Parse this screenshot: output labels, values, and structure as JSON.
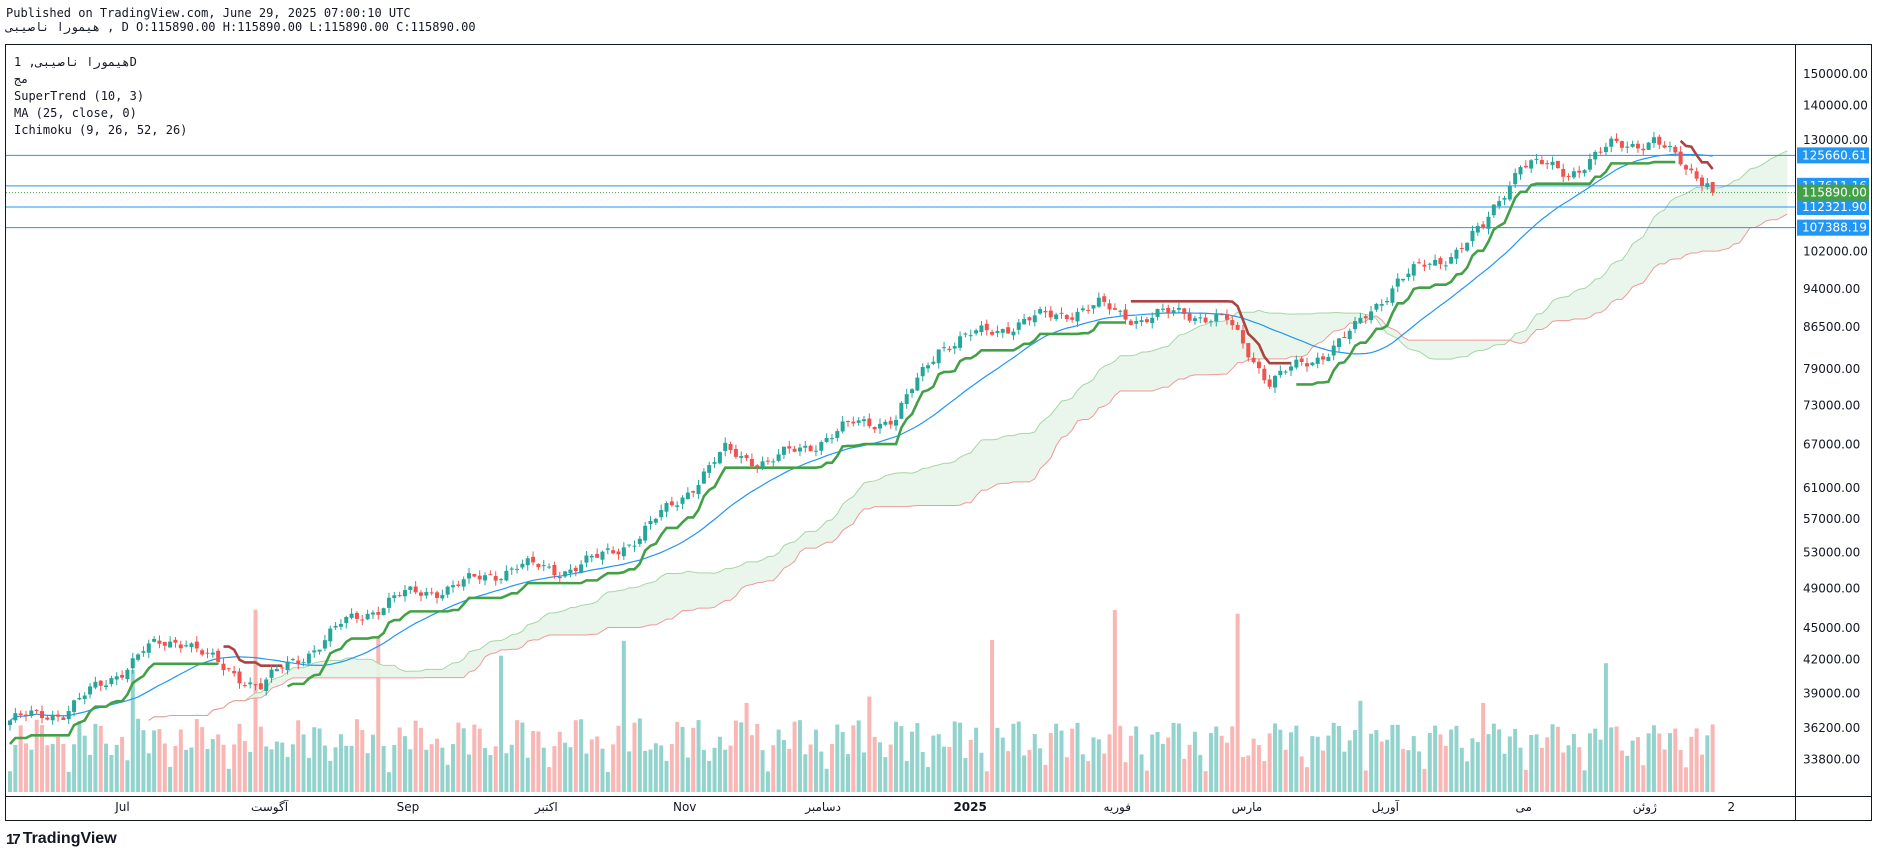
{
  "header": {
    "published": "Published on TradingView.com, June 29, 2025 07:00:10 UTC",
    "ohlc": "هیمورا ناصیبی , D O:115890.00 H:115890.00 L:115890.00 C:115890.00"
  },
  "legend": {
    "symbol": "هیمورا ناصیبی, 1D",
    "exchange": "مج",
    "supertrend": "SuperTrend (10, 3)",
    "ma": "MA (25, close, 0)",
    "ichimoku": "Ichimoku (9, 26, 52, 26)"
  },
  "footer": {
    "logo_mark": "17",
    "logo_text": "TradingView"
  },
  "colors": {
    "up": "#26a69a",
    "down": "#ef5350",
    "ma": "#2196f3",
    "st_up": "#43a047",
    "st_down": "#a94442",
    "cloud_up": "#e8f5e9",
    "span_a": "#a5d6a7",
    "span_b": "#ef9a9a",
    "hline": "#2196f3",
    "last": "#43a047"
  },
  "chart_data": {
    "type": "candlestick",
    "title": "هیمورا ناصیبی, 1D",
    "x_labels": [
      "Jul",
      "آگوست",
      "Sep",
      "اکتبر",
      "Nov",
      "دسامبر",
      "2025",
      "فوریه",
      "مارس",
      "آوریل",
      "می",
      "ژوئن",
      "2"
    ],
    "y_ticks": [
      33800,
      36200,
      39000,
      42000,
      45000,
      49000,
      53000,
      57000,
      61000,
      67000,
      73000,
      79000,
      86500,
      94000,
      102000,
      130000,
      140000,
      150000
    ],
    "y_scale": "log",
    "ylim": [
      31500,
      158000
    ],
    "horizontal_levels": [
      125660.61,
      117611.16,
      112321.9,
      107388.19
    ],
    "last_price": 115890.0,
    "trend_anchors": [
      [
        0,
        36800
      ],
      [
        10,
        37500
      ],
      [
        18,
        40000
      ],
      [
        25,
        42800
      ],
      [
        33,
        44000
      ],
      [
        40,
        41000
      ],
      [
        47,
        39800
      ],
      [
        54,
        42000
      ],
      [
        62,
        45200
      ],
      [
        72,
        48000
      ],
      [
        85,
        49500
      ],
      [
        95,
        51500
      ],
      [
        103,
        51000
      ],
      [
        110,
        52200
      ],
      [
        118,
        55000
      ],
      [
        126,
        60000
      ],
      [
        134,
        66000
      ],
      [
        142,
        64500
      ],
      [
        150,
        67000
      ],
      [
        158,
        70000
      ],
      [
        166,
        71000
      ],
      [
        174,
        83000
      ],
      [
        186,
        86500
      ],
      [
        196,
        89000
      ],
      [
        204,
        90500
      ],
      [
        212,
        88000
      ],
      [
        220,
        89500
      ],
      [
        228,
        87500
      ],
      [
        236,
        77000
      ],
      [
        244,
        80500
      ],
      [
        252,
        86000
      ],
      [
        260,
        96000
      ],
      [
        268,
        100000
      ],
      [
        276,
        107000
      ],
      [
        283,
        124000
      ],
      [
        292,
        121000
      ],
      [
        300,
        128000
      ],
      [
        308,
        130000
      ],
      [
        314,
        122000
      ],
      [
        320,
        118000
      ]
    ],
    "volume_range": [
      0,
      100
    ],
    "supertrend_note": "green = uptrend support, red = downtrend resistance",
    "ma_period": 25
  }
}
